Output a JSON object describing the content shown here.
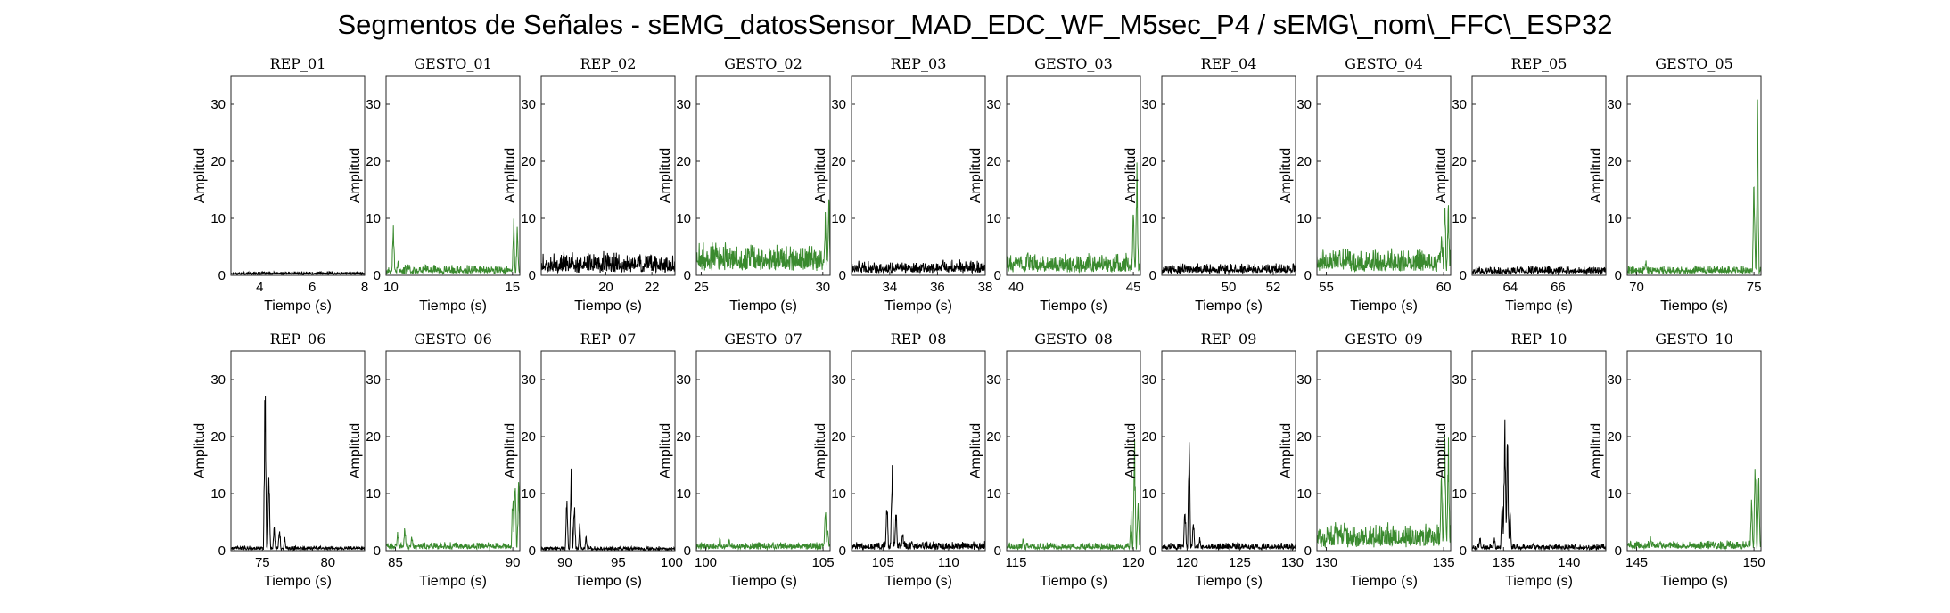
{
  "title": "Segmentos de Señales - sEMG_datosSensor_MAD_EDC_WF_M5sec_P4 / sEMG\\_nom\\_FFC\\_ESP32",
  "colors": {
    "rep": "#000000",
    "gesto": "#3a8a2e",
    "axis": "#262626"
  },
  "chart_data": [
    {
      "type": "line",
      "title": "REP_01",
      "color": "rep",
      "xlabel": "Tiempo (s)",
      "ylabel": "Amplitud",
      "xlim": [
        2.9,
        8
      ],
      "ylim": [
        0,
        35
      ],
      "xticks": [
        4,
        6,
        8
      ],
      "yticks": [
        0,
        10,
        20,
        30
      ],
      "profile": {
        "base": 0.4,
        "noise": 0.3,
        "spikes": []
      }
    },
    {
      "type": "line",
      "title": "GESTO_01",
      "color": "gesto",
      "xlabel": "Tiempo (s)",
      "ylabel": "Amplitud",
      "xlim": [
        9.8,
        15.3
      ],
      "ylim": [
        0,
        35
      ],
      "xticks": [
        10,
        15
      ],
      "yticks": [
        0,
        10,
        20,
        30
      ],
      "profile": {
        "base": 0.8,
        "noise": 1.2,
        "spikes": [
          [
            10.1,
            11
          ],
          [
            10.3,
            3
          ],
          [
            15.05,
            11
          ],
          [
            15.2,
            10
          ]
        ]
      }
    },
    {
      "type": "line",
      "title": "REP_02",
      "color": "rep",
      "xlabel": "Tiempo (s)",
      "ylabel": "Amplitud",
      "xlim": [
        17.2,
        23
      ],
      "ylim": [
        0,
        35
      ],
      "xticks": [
        20,
        22
      ],
      "yticks": [
        0,
        10,
        20,
        30
      ],
      "profile": {
        "base": 1.5,
        "noise": 2.8,
        "spikes": []
      }
    },
    {
      "type": "line",
      "title": "GESTO_02",
      "color": "gesto",
      "xlabel": "Tiempo (s)",
      "ylabel": "Amplitud",
      "xlim": [
        24.8,
        30.3
      ],
      "ylim": [
        0,
        35
      ],
      "xticks": [
        25,
        30
      ],
      "yticks": [
        0,
        10,
        20,
        30
      ],
      "profile": {
        "base": 2.5,
        "noise": 3.5,
        "spikes": [
          [
            25.6,
            6
          ],
          [
            30.1,
            12
          ],
          [
            30.25,
            15.5
          ]
        ]
      }
    },
    {
      "type": "line",
      "title": "REP_03",
      "color": "rep",
      "xlabel": "Tiempo (s)",
      "ylabel": "Amplitud",
      "xlim": [
        32.4,
        38
      ],
      "ylim": [
        0,
        35
      ],
      "xticks": [
        34,
        36,
        38
      ],
      "yticks": [
        0,
        10,
        20,
        30
      ],
      "profile": {
        "base": 1.2,
        "noise": 1.6,
        "spikes": []
      }
    },
    {
      "type": "line",
      "title": "GESTO_03",
      "color": "gesto",
      "xlabel": "Tiempo (s)",
      "ylabel": "Amplitud",
      "xlim": [
        39.6,
        45.3
      ],
      "ylim": [
        0,
        35
      ],
      "xticks": [
        40,
        45
      ],
      "yticks": [
        0,
        10,
        20,
        30
      ],
      "profile": {
        "base": 1.6,
        "noise": 2.5,
        "spikes": [
          [
            40.2,
            4.5
          ],
          [
            40.5,
            5
          ],
          [
            45.0,
            13
          ],
          [
            45.15,
            22
          ]
        ]
      }
    },
    {
      "type": "line",
      "title": "REP_04",
      "color": "rep",
      "xlabel": "Tiempo (s)",
      "ylabel": "Amplitud",
      "xlim": [
        47,
        53
      ],
      "ylim": [
        0,
        35
      ],
      "xticks": [
        50,
        52
      ],
      "yticks": [
        0,
        10,
        20,
        30
      ],
      "profile": {
        "base": 0.9,
        "noise": 1.3,
        "spikes": []
      }
    },
    {
      "type": "line",
      "title": "GESTO_04",
      "color": "gesto",
      "xlabel": "Tiempo (s)",
      "ylabel": "Amplitud",
      "xlim": [
        54.6,
        60.3
      ],
      "ylim": [
        0,
        35
      ],
      "xticks": [
        55,
        60
      ],
      "yticks": [
        0,
        10,
        20,
        30
      ],
      "profile": {
        "base": 2,
        "noise": 3,
        "spikes": [
          [
            59.9,
            9
          ],
          [
            60.05,
            16
          ],
          [
            60.2,
            14
          ]
        ]
      }
    },
    {
      "type": "line",
      "title": "REP_05",
      "color": "rep",
      "xlabel": "Tiempo (s)",
      "ylabel": "Amplitud",
      "xlim": [
        62.4,
        68
      ],
      "ylim": [
        0,
        35
      ],
      "xticks": [
        64,
        66
      ],
      "yticks": [
        0,
        10,
        20,
        30
      ],
      "profile": {
        "base": 0.7,
        "noise": 1.1,
        "spikes": []
      }
    },
    {
      "type": "line",
      "title": "GESTO_05",
      "color": "gesto",
      "xlabel": "Tiempo (s)",
      "ylabel": "Amplitud",
      "xlim": [
        69.6,
        75.3
      ],
      "ylim": [
        0,
        35
      ],
      "xticks": [
        70,
        75
      ],
      "yticks": [
        0,
        10,
        20,
        30
      ],
      "profile": {
        "base": 0.8,
        "noise": 1.0,
        "spikes": [
          [
            70.4,
            3.5
          ],
          [
            75.0,
            20
          ],
          [
            75.15,
            34
          ]
        ]
      }
    },
    {
      "type": "line",
      "title": "REP_06",
      "color": "rep",
      "xlabel": "Tiempo (s)",
      "ylabel": "Amplitud",
      "xlim": [
        72.6,
        82.8
      ],
      "ylim": [
        0,
        35
      ],
      "xticks": [
        75,
        80
      ],
      "yticks": [
        0,
        10,
        20,
        30
      ],
      "profile": {
        "base": 0.4,
        "noise": 0.5,
        "spikes": [
          [
            75.2,
            34
          ],
          [
            75.5,
            15
          ],
          [
            75.9,
            5
          ],
          [
            76.3,
            5
          ],
          [
            76.7,
            2.5
          ]
        ]
      }
    },
    {
      "type": "line",
      "title": "GESTO_06",
      "color": "gesto",
      "xlabel": "Tiempo (s)",
      "ylabel": "Amplitud",
      "xlim": [
        84.6,
        90.3
      ],
      "ylim": [
        0,
        35
      ],
      "xticks": [
        85,
        90
      ],
      "yticks": [
        0,
        10,
        20,
        30
      ],
      "profile": {
        "base": 0.8,
        "noise": 0.8,
        "spikes": [
          [
            85.1,
            4
          ],
          [
            85.4,
            5
          ],
          [
            85.7,
            3.5
          ],
          [
            90.0,
            12
          ],
          [
            90.1,
            16.5
          ],
          [
            90.25,
            14
          ]
        ]
      }
    },
    {
      "type": "line",
      "title": "REP_07",
      "color": "rep",
      "xlabel": "Tiempo (s)",
      "ylabel": "Amplitud",
      "xlim": [
        87.8,
        100.3
      ],
      "ylim": [
        0,
        35
      ],
      "xticks": [
        90,
        95,
        100
      ],
      "yticks": [
        0,
        10,
        20,
        30
      ],
      "profile": {
        "base": 0.3,
        "noise": 0.5,
        "spikes": [
          [
            90.2,
            12
          ],
          [
            90.6,
            16.5
          ],
          [
            90.9,
            10
          ],
          [
            91.4,
            5
          ],
          [
            92,
            3
          ]
        ]
      }
    },
    {
      "type": "line",
      "title": "GESTO_07",
      "color": "gesto",
      "xlabel": "Tiempo (s)",
      "ylabel": "Amplitud",
      "xlim": [
        99.6,
        105.3
      ],
      "ylim": [
        0,
        35
      ],
      "xticks": [
        100,
        105
      ],
      "yticks": [
        0,
        10,
        20,
        30
      ],
      "profile": {
        "base": 0.7,
        "noise": 0.9,
        "spikes": [
          [
            100.6,
            2.8
          ],
          [
            101,
            2.5
          ],
          [
            105.1,
            8
          ],
          [
            105.2,
            5
          ]
        ]
      }
    },
    {
      "type": "line",
      "title": "REP_08",
      "color": "rep",
      "xlabel": "Tiempo (s)",
      "ylabel": "Amplitud",
      "xlim": [
        102.6,
        112.8
      ],
      "ylim": [
        0,
        35
      ],
      "xticks": [
        105,
        110
      ],
      "yticks": [
        0,
        10,
        20,
        30
      ],
      "profile": {
        "base": 0.6,
        "noise": 1.2,
        "spikes": [
          [
            105.3,
            11
          ],
          [
            105.7,
            19
          ],
          [
            106,
            8
          ],
          [
            106.5,
            4
          ],
          [
            107.2,
            2.5
          ]
        ]
      }
    },
    {
      "type": "line",
      "title": "GESTO_08",
      "color": "gesto",
      "xlabel": "Tiempo (s)",
      "ylabel": "Amplitud",
      "xlim": [
        114.6,
        120.3
      ],
      "ylim": [
        0,
        35
      ],
      "xticks": [
        115,
        120
      ],
      "yticks": [
        0,
        10,
        20,
        30
      ],
      "profile": {
        "base": 0.6,
        "noise": 1.0,
        "spikes": [
          [
            115.3,
            2.5
          ],
          [
            119.9,
            8
          ],
          [
            120.05,
            22
          ],
          [
            120.2,
            12
          ]
        ]
      }
    },
    {
      "type": "line",
      "title": "REP_09",
      "color": "rep",
      "xlabel": "Tiempo (s)",
      "ylabel": "Amplitud",
      "xlim": [
        117.6,
        130.3
      ],
      "ylim": [
        0,
        35
      ],
      "xticks": [
        120,
        125,
        130
      ],
      "yticks": [
        0,
        10,
        20,
        30
      ],
      "profile": {
        "base": 0.6,
        "noise": 0.9,
        "spikes": [
          [
            119.8,
            10
          ],
          [
            120.2,
            22
          ],
          [
            120.6,
            6
          ],
          [
            121.2,
            3
          ]
        ]
      }
    },
    {
      "type": "line",
      "title": "GESTO_09",
      "color": "gesto",
      "xlabel": "Tiempo (s)",
      "ylabel": "Amplitud",
      "xlim": [
        129.6,
        135.3
      ],
      "ylim": [
        0,
        35
      ],
      "xticks": [
        130,
        135
      ],
      "yticks": [
        0,
        10,
        20,
        30
      ],
      "profile": {
        "base": 1.8,
        "noise": 3.5,
        "spikes": [
          [
            130.4,
            6
          ],
          [
            130.8,
            5
          ],
          [
            131.2,
            4
          ],
          [
            134.9,
            16
          ],
          [
            135.05,
            28
          ],
          [
            135.2,
            22
          ]
        ]
      }
    },
    {
      "type": "line",
      "title": "REP_10",
      "color": "rep",
      "xlabel": "Tiempo (s)",
      "ylabel": "Amplitud",
      "xlim": [
        132.6,
        142.8
      ],
      "ylim": [
        0,
        35
      ],
      "xticks": [
        135,
        140
      ],
      "yticks": [
        0,
        10,
        20,
        30
      ],
      "profile": {
        "base": 0.5,
        "noise": 0.8,
        "spikes": [
          [
            133.2,
            3
          ],
          [
            134.3,
            3
          ],
          [
            134.9,
            12
          ],
          [
            135.1,
            28
          ],
          [
            135.3,
            24
          ],
          [
            135.5,
            8
          ]
        ]
      }
    },
    {
      "type": "line",
      "title": "GESTO_10",
      "color": "gesto",
      "xlabel": "Tiempo (s)",
      "ylabel": "Amplitud",
      "xlim": [
        144.6,
        150.3
      ],
      "ylim": [
        0,
        35
      ],
      "xticks": [
        145,
        150
      ],
      "yticks": [
        0,
        10,
        20,
        30
      ],
      "profile": {
        "base": 0.8,
        "noise": 1.1,
        "spikes": [
          [
            145.6,
            3
          ],
          [
            146,
            2.5
          ],
          [
            149.9,
            10
          ],
          [
            150.05,
            20
          ],
          [
            150.2,
            14
          ]
        ]
      }
    }
  ]
}
